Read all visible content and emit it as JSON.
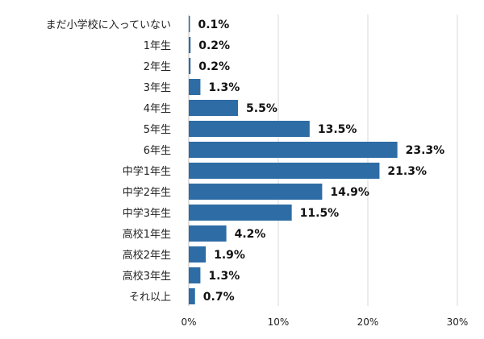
{
  "chart_data": {
    "type": "bar",
    "orientation": "horizontal",
    "categories": [
      "まだ小学校に入っていない",
      "1年生",
      "2年生",
      "3年生",
      "4年生",
      "5年生",
      "6年生",
      "中学1年生",
      "中学2年生",
      "中学3年生",
      "高校1年生",
      "高校2年生",
      "高校3年生",
      "それ以上"
    ],
    "values": [
      0.1,
      0.2,
      0.2,
      1.3,
      5.5,
      13.5,
      23.3,
      21.3,
      14.9,
      11.5,
      4.2,
      1.9,
      1.3,
      0.7
    ],
    "value_labels": [
      "0.1%",
      "0.2%",
      "0.2%",
      "1.3%",
      "5.5%",
      "13.5%",
      "23.3%",
      "21.3%",
      "14.9%",
      "11.5%",
      "4.2%",
      "1.9%",
      "1.3%",
      "0.7%"
    ],
    "xlim": [
      0,
      30
    ],
    "xticks": [
      0,
      10,
      20,
      30
    ],
    "xtick_labels": [
      "0%",
      "10%",
      "20%",
      "30%"
    ],
    "grid": true,
    "colors": {
      "bar": "#2e6ca5",
      "grid": "#d9d9d9",
      "axis": "#bfbfbf"
    }
  }
}
